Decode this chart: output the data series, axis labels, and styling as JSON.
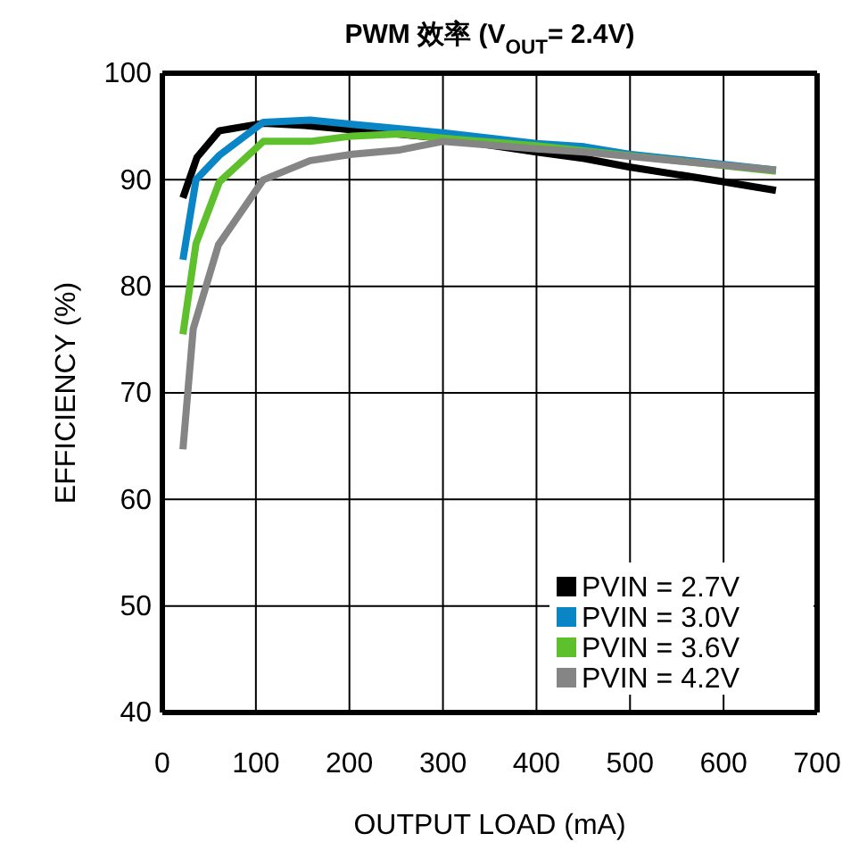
{
  "chart_data": {
    "type": "line",
    "title": "PWM 效率 (V$_{OUT}$= 2.4V)",
    "xlabel": "OUTPUT LOAD (mA)",
    "ylabel": "EFFICIENCY (%)",
    "xlim": [
      0,
      700
    ],
    "xticks": [
      0,
      100,
      200,
      300,
      400,
      500,
      600,
      700
    ],
    "ylim": [
      40,
      100
    ],
    "yticks": [
      40,
      50,
      60,
      70,
      80,
      90,
      100
    ],
    "grid": true,
    "legend": "bottom right",
    "line_style": "solid",
    "marker": "none",
    "series": [
      {
        "name": "PVIN = 2.7V",
        "color": "#000000",
        "x": [
          22,
          37,
          61,
          108,
          152,
          300,
          400,
          451,
          499,
          601,
          656
        ],
        "values": [
          88.3,
          92.1,
          94.6,
          95.3,
          95.1,
          93.9,
          92.6,
          92.0,
          91.2,
          89.8,
          89.0
        ]
      },
      {
        "name": "PVIN = 3.0V",
        "color": "#0a85c6",
        "x": [
          22,
          36,
          61,
          108,
          158,
          203,
          300,
          400,
          451,
          499,
          656
        ],
        "values": [
          82.5,
          90.0,
          92.3,
          95.4,
          95.6,
          95.2,
          94.4,
          93.4,
          93.1,
          92.4,
          90.9
        ]
      },
      {
        "name": "PVIN = 3.6V",
        "color": "#5ec02d",
        "x": [
          22,
          36,
          61,
          108,
          158,
          203,
          254,
          300,
          400,
          656
        ],
        "values": [
          75.5,
          84.0,
          89.8,
          93.6,
          93.6,
          94.1,
          94.3,
          93.9,
          93.2,
          90.8
        ]
      },
      {
        "name": "PVIN = 4.2V",
        "color": "#858585",
        "x": [
          22,
          33,
          60,
          108,
          158,
          203,
          254,
          300,
          400,
          451,
          499,
          656
        ],
        "values": [
          64.7,
          76.0,
          83.9,
          90.0,
          91.8,
          92.4,
          92.8,
          93.6,
          92.9,
          92.6,
          92.2,
          90.9
        ]
      }
    ]
  }
}
